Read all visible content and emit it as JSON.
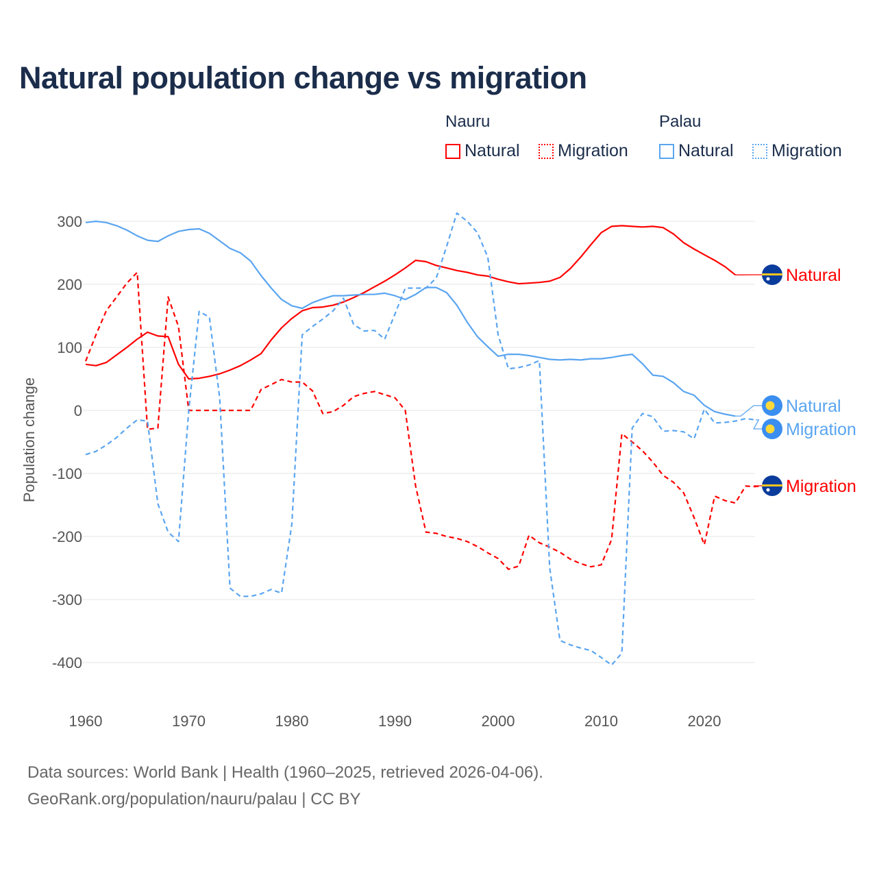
{
  "title": "Natural population change vs migration",
  "legend": {
    "groups": [
      {
        "name": "Nauru",
        "items": [
          {
            "label": "Natural",
            "style": "solid"
          },
          {
            "label": "Migration",
            "style": "dotted"
          }
        ],
        "color": "#ff0000"
      },
      {
        "name": "Palau",
        "items": [
          {
            "label": "Natural",
            "style": "solid"
          },
          {
            "label": "Migration",
            "style": "dotted"
          }
        ],
        "color": "#5aa5f0"
      }
    ]
  },
  "footer": {
    "line1": "Data sources: World Bank | Health (1960–2025, retrieved 2026-04-06).",
    "line2": "GeoRank.org/population/nauru/palau | CC BY"
  },
  "chart_data": {
    "type": "line",
    "title": "Natural population change vs migration",
    "xlabel": "",
    "ylabel": "Population change",
    "xlim": [
      1960,
      2025
    ],
    "ylim": [
      -450,
      320
    ],
    "xticks": [
      1960,
      1970,
      1980,
      1990,
      2000,
      2010,
      2020
    ],
    "yticks": [
      300,
      200,
      100,
      0,
      -100,
      -200,
      -300,
      -400
    ],
    "grid": true,
    "series": [
      {
        "name": "Nauru Natural",
        "country": "Nauru",
        "end_label": "Natural",
        "color": "#ff0000",
        "dash": false,
        "start": 1960,
        "values": [
          73,
          71,
          76,
          88,
          100,
          113,
          124,
          118,
          117,
          73,
          50,
          51,
          54,
          58,
          64,
          71,
          80,
          90,
          112,
          131,
          146,
          158,
          163,
          164,
          167,
          172,
          179,
          187,
          196,
          205,
          215,
          226,
          238,
          236,
          230,
          226,
          222,
          219,
          215,
          213,
          208,
          204,
          201,
          202,
          203,
          205,
          211,
          225,
          243,
          263,
          282,
          292,
          293,
          292,
          291,
          292,
          290,
          280,
          266,
          256,
          247,
          238,
          228,
          215
        ]
      },
      {
        "name": "Nauru Migration",
        "country": "Nauru",
        "end_label": "Migration",
        "color": "#ff0000",
        "dash": true,
        "start": 1960,
        "values": [
          78,
          120,
          158,
          180,
          202,
          219,
          -30,
          -28,
          180,
          133,
          0,
          0,
          0,
          0,
          0,
          0,
          0,
          33,
          41,
          49,
          45,
          45,
          31,
          -5,
          -2,
          8,
          22,
          27,
          30,
          25,
          20,
          0,
          -120,
          -193,
          -195,
          -200,
          -203,
          -208,
          -216,
          -226,
          -235,
          -252,
          -247,
          -198,
          -210,
          -217,
          -225,
          -236,
          -243,
          -248,
          -245,
          -205,
          -37,
          -50,
          -64,
          -82,
          -103,
          -114,
          -131,
          -170,
          -213,
          -136,
          -143,
          -147,
          -120,
          -121
        ]
      },
      {
        "name": "Palau Natural",
        "country": "Palau",
        "end_label": "Natural",
        "color": "#5aa5f0",
        "dash": false,
        "start": 1960,
        "values": [
          298,
          300,
          298,
          293,
          286,
          277,
          270,
          268,
          277,
          284,
          287,
          288,
          281,
          269,
          257,
          250,
          237,
          214,
          194,
          176,
          166,
          162,
          171,
          177,
          182,
          182,
          183,
          184,
          184,
          186,
          182,
          176,
          184,
          195,
          195,
          187,
          167,
          140,
          117,
          101,
          86,
          89,
          89,
          87,
          84,
          81,
          80,
          81,
          80,
          82,
          82,
          84,
          87,
          89,
          74,
          56,
          54,
          44,
          30,
          24,
          8,
          -2,
          -6,
          -9
        ]
      },
      {
        "name": "Palau Migration",
        "country": "Palau",
        "end_label": "Migration",
        "color": "#5aa5f0",
        "dash": true,
        "start": 1960,
        "values": [
          -70,
          -65,
          -55,
          -43,
          -28,
          -15,
          -17,
          -148,
          -193,
          -208,
          0,
          157,
          148,
          20,
          -282,
          -295,
          -295,
          -291,
          -284,
          -290,
          -180,
          120,
          133,
          145,
          158,
          178,
          136,
          126,
          127,
          113,
          153,
          194,
          194,
          194,
          210,
          260,
          313,
          300,
          282,
          243,
          120,
          66,
          68,
          72,
          79,
          -250,
          -365,
          -372,
          -377,
          -381,
          -392,
          -404,
          -385,
          -28,
          -5,
          -10,
          -33,
          -32,
          -34,
          -45,
          2,
          -20,
          -19,
          -17,
          -13,
          -15
        ]
      }
    ]
  }
}
